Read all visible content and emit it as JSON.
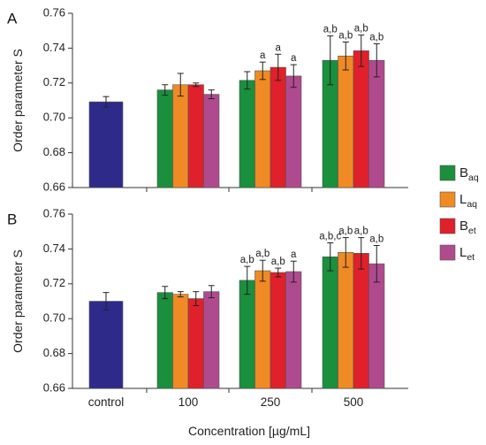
{
  "chart_data": [
    {
      "type": "bar",
      "panel": "A",
      "categories": [
        "control",
        "100",
        "250",
        "500"
      ],
      "ylabel": "Order parameter S",
      "ylim": [
        0.66,
        0.76
      ],
      "yticks": [
        "0.66",
        "0.68",
        "0.70",
        "0.72",
        "0.74",
        "0.76"
      ],
      "show_category_labels": false,
      "series": [
        {
          "name": "control",
          "color": "#2e2a8a",
          "values": [
            0.7092,
            null,
            null,
            null
          ],
          "errors": [
            0.003,
            null,
            null,
            null
          ],
          "labels": [
            "",
            "",
            "",
            ""
          ]
        },
        {
          "name": "B_aq",
          "color": "#1a8f3c",
          "values": [
            null,
            0.716,
            0.7215,
            0.733
          ],
          "errors": [
            null,
            0.003,
            0.005,
            0.014
          ],
          "labels": [
            "",
            "",
            "",
            "a,b"
          ]
        },
        {
          "name": "L_aq",
          "color": "#f08a24",
          "values": [
            null,
            0.719,
            0.727,
            0.7355
          ],
          "errors": [
            null,
            0.0065,
            0.005,
            0.008
          ],
          "labels": [
            "",
            "",
            "a",
            "a,b"
          ]
        },
        {
          "name": "B_et",
          "color": "#e0202a",
          "values": [
            null,
            0.719,
            0.729,
            0.7385
          ],
          "errors": [
            null,
            0.001,
            0.0075,
            0.009
          ],
          "labels": [
            "",
            "",
            "a",
            "a,b"
          ]
        },
        {
          "name": "L_et",
          "color": "#b04a8e",
          "values": [
            null,
            0.7135,
            0.724,
            0.733
          ],
          "errors": [
            null,
            0.0025,
            0.0065,
            0.0095
          ],
          "labels": [
            "",
            "",
            "a",
            "a,b"
          ]
        }
      ]
    },
    {
      "type": "bar",
      "panel": "B",
      "categories": [
        "control",
        "100",
        "250",
        "500"
      ],
      "ylabel": "Order parameter S",
      "xlabel": "Concentration [µg/mL]",
      "ylim": [
        0.66,
        0.76
      ],
      "yticks": [
        "0.66",
        "0.68",
        "0.70",
        "0.72",
        "0.74",
        "0.76"
      ],
      "show_category_labels": true,
      "series": [
        {
          "name": "control",
          "color": "#2e2a8a",
          "values": [
            0.71,
            null,
            null,
            null
          ],
          "errors": [
            0.005,
            null,
            null,
            null
          ],
          "labels": [
            "",
            "",
            "",
            ""
          ]
        },
        {
          "name": "B_aq",
          "color": "#1a8f3c",
          "values": [
            null,
            0.715,
            0.722,
            0.7355
          ],
          "errors": [
            null,
            0.0035,
            0.008,
            0.008
          ],
          "labels": [
            "",
            "",
            "a,b",
            "a,b,c"
          ]
        },
        {
          "name": "L_aq",
          "color": "#f08a24",
          "values": [
            null,
            0.714,
            0.7275,
            0.738
          ],
          "errors": [
            null,
            0.0015,
            0.006,
            0.0085
          ],
          "labels": [
            "",
            "",
            "a,b",
            "a,b"
          ]
        },
        {
          "name": "B_et",
          "color": "#e0202a",
          "values": [
            null,
            0.7115,
            0.7265,
            0.7375
          ],
          "errors": [
            null,
            0.004,
            0.0025,
            0.009
          ],
          "labels": [
            "",
            "",
            "a,b",
            "a,b"
          ]
        },
        {
          "name": "L_et",
          "color": "#b04a8e",
          "values": [
            null,
            0.7155,
            0.727,
            0.7315
          ],
          "errors": [
            null,
            0.0035,
            0.006,
            0.0105
          ],
          "labels": [
            "",
            "",
            "a",
            "a,b"
          ]
        }
      ]
    }
  ],
  "legend": {
    "placement": "right",
    "items": [
      {
        "base": "B",
        "sub": "aq",
        "color": "#1a8f3c"
      },
      {
        "base": "L",
        "sub": "aq",
        "color": "#f08a24"
      },
      {
        "base": "B",
        "sub": "et",
        "color": "#e0202a"
      },
      {
        "base": "L",
        "sub": "et",
        "color": "#b04a8e"
      }
    ]
  }
}
